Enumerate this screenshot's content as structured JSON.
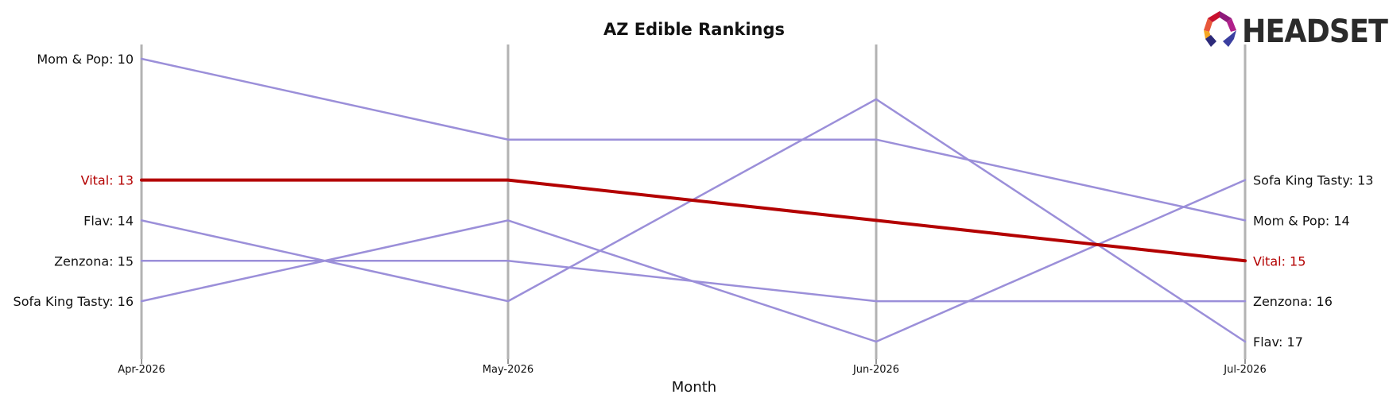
{
  "chart_data": {
    "type": "line",
    "title": "AZ Edible Rankings",
    "xlabel": "Month",
    "ylabel": "",
    "x": [
      "Apr-2026",
      "May-2026",
      "Jun-2026",
      "Jul-2026"
    ],
    "ylim": [
      17,
      10
    ],
    "y_inverted": true,
    "grid": "vertical lines at each month",
    "series": [
      {
        "name": "Mom & Pop",
        "values": [
          10,
          12,
          12,
          14
        ],
        "color": "#9b8fd9",
        "highlight": false,
        "start_label": "Mom & Pop: 10",
        "end_label": "Mom & Pop: 14"
      },
      {
        "name": "Vital",
        "values": [
          13,
          13,
          14,
          15
        ],
        "color": "#b30000",
        "highlight": true,
        "start_label": "Vital: 13",
        "end_label": "Vital: 15"
      },
      {
        "name": "Flav",
        "values": [
          14,
          16,
          11,
          17
        ],
        "color": "#9b8fd9",
        "highlight": false,
        "start_label": "Flav: 14",
        "end_label": "Flav: 17"
      },
      {
        "name": "Zenzona",
        "values": [
          15,
          15,
          16,
          16
        ],
        "color": "#9b8fd9",
        "highlight": false,
        "start_label": "Zenzona: 15",
        "end_label": "Zenzona: 16"
      },
      {
        "name": "Sofa King Tasty",
        "values": [
          16,
          14,
          17,
          13
        ],
        "color": "#9b8fd9",
        "highlight": false,
        "start_label": "Sofa King Tasty: 16",
        "end_label": "Sofa King Tasty: 13"
      }
    ]
  },
  "logo": {
    "text": "HEADSET",
    "colors": [
      "#c8102e",
      "#e8573a",
      "#f5a623",
      "#8e1a7a",
      "#2d2a7a",
      "#3b3fa0"
    ]
  }
}
